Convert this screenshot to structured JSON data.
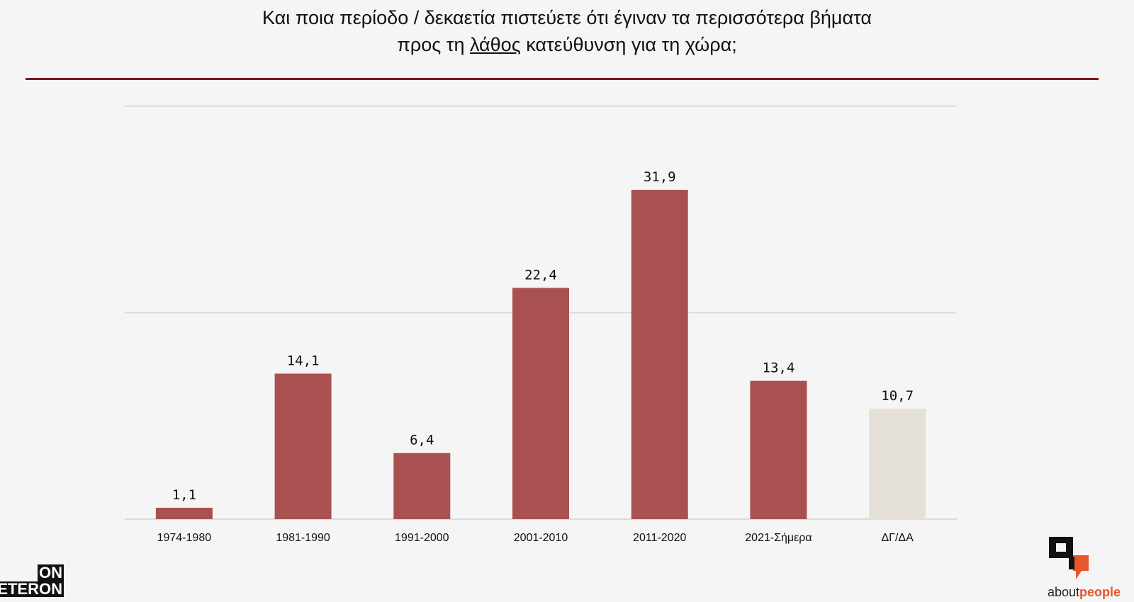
{
  "header": {
    "title_line1": "Και ποια περίοδο / δεκαετία πιστεύετε ότι έγιναν τα περισσότερα βήματα",
    "title_line2_before": "προς τη ",
    "title_line2_underlined": "λάθος",
    "title_line2_after": " κατεύθυνση για τη χώρα;"
  },
  "chart_data": {
    "type": "bar",
    "title": "Και ποια περίοδο / δεκαετία πιστεύετε ότι έγιναν τα περισσότερα βήματα προς τη λάθος κατεύθυνση για τη χώρα;",
    "categories": [
      "1974-1980",
      "1981-1990",
      "1991-2000",
      "2001-2010",
      "2011-2020",
      "2021-Σήμερα",
      "ΔΓ/ΔΑ"
    ],
    "values": [
      1.1,
      14.1,
      6.4,
      22.4,
      31.9,
      13.4,
      10.7
    ],
    "value_labels": [
      "1,1",
      "14,1",
      "6,4",
      "22,4",
      "31,9",
      "13,4",
      "10,7"
    ],
    "ylim": [
      0,
      40
    ],
    "grid": true,
    "colors": {
      "bar": "#a85150",
      "bar_highlight_last": "#e6e1d8",
      "grid": "#dcdcdc",
      "rule": "#7b1a1f"
    }
  },
  "logos": {
    "left_top": "ON",
    "left_bottom": "ETERON",
    "right_word_plain": "about",
    "right_word_accent": "people"
  }
}
